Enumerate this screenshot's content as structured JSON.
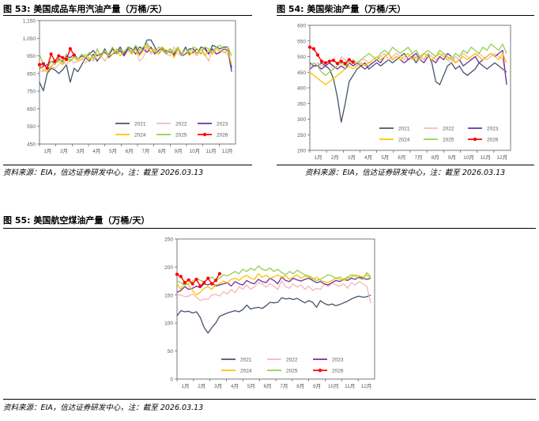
{
  "figures": [
    {
      "title": "图 53:  美国成品车用汽油产量（万桶/天）",
      "source": "资料来源：EIA，信达证券研发中心，注：截至 2026.03.13"
    },
    {
      "title": "图 54:  美国柴油产量（万桶/天）",
      "source": "资料来源：EIA，信达证券研发中心，注：截至 2026.03.13"
    },
    {
      "title": "图 55:  美国航空煤油产量（万桶/天）",
      "source": "资料来源：EIA，信达证券研发中心，注：截至 2026.03.13"
    }
  ],
  "chart_data": [
    {
      "type": "line",
      "title": "美国成品车用汽油产量（万桶/天）",
      "xlabel": "",
      "ylabel": "",
      "x_ticks": [
        "1月",
        "2月",
        "3月",
        "4月",
        "5月",
        "6月",
        "7月",
        "8月",
        "9月",
        "10月",
        "11月",
        "12月"
      ],
      "y_ticks": [
        450,
        550,
        650,
        750,
        850,
        950,
        1050,
        1150
      ],
      "ylim": [
        450,
        1150
      ],
      "grid": false,
      "legend": "bottom-right",
      "series": [
        {
          "name": "2021",
          "color": "#44546a",
          "values": [
            800,
            752,
            850,
            880,
            870,
            850,
            870,
            900,
            800,
            880,
            860,
            900,
            940,
            920,
            960,
            920,
            950,
            990,
            940,
            960,
            970,
            1000,
            960,
            1000,
            990,
            960,
            1000,
            990,
            1040,
            1040,
            1000,
            960,
            990,
            980,
            970,
            960,
            990,
            950,
            960,
            990,
            990,
            960,
            1000,
            990,
            960,
            1010,
            1000,
            990,
            1000,
            1000,
            880
          ]
        },
        {
          "name": "2022",
          "color": "#f4b8b8",
          "values": [
            870,
            860,
            880,
            890,
            880,
            900,
            920,
            900,
            930,
            910,
            920,
            930,
            910,
            940,
            920,
            960,
            950,
            920,
            960,
            990,
            960,
            980,
            950,
            980,
            960,
            990,
            920,
            940,
            1000,
            960,
            980,
            970,
            980,
            960,
            950,
            1000,
            960,
            950,
            990,
            960,
            970,
            950,
            990,
            960,
            920,
            990,
            960,
            980,
            970,
            960,
            900
          ]
        },
        {
          "name": "2023",
          "color": "#7030a0",
          "values": [
            880,
            890,
            900,
            920,
            910,
            930,
            920,
            950,
            940,
            960,
            930,
            950,
            940,
            960,
            980,
            950,
            960,
            970,
            950,
            990,
            960,
            980,
            950,
            990,
            970,
            1000,
            960,
            990,
            970,
            1000,
            960,
            980,
            1000,
            960,
            990,
            950,
            990,
            960,
            1000,
            960,
            970,
            990,
            960,
            1000,
            960,
            990,
            960,
            970,
            990,
            980,
            860
          ]
        },
        {
          "name": "2024",
          "color": "#ffc000",
          "values": [
            900,
            870,
            860,
            890,
            910,
            920,
            900,
            930,
            920,
            940,
            920,
            930,
            960,
            930,
            950,
            960,
            940,
            980,
            950,
            960,
            990,
            950,
            970,
            1000,
            960,
            990,
            950,
            980,
            1010,
            970,
            990,
            960,
            1000,
            970,
            990,
            940,
            990,
            960,
            990,
            950,
            980,
            960,
            990,
            950,
            980,
            960,
            990,
            980,
            970,
            980,
            900
          ]
        },
        {
          "name": "2025",
          "color": "#92d050",
          "values": [
            960,
            900,
            880,
            920,
            900,
            940,
            910,
            960,
            920,
            950,
            930,
            960,
            940,
            970,
            930,
            990,
            950,
            980,
            960,
            1000,
            960,
            990,
            970,
            1000,
            970,
            1010,
            980,
            1000,
            1020,
            990,
            970,
            1000,
            980,
            960,
            990,
            970,
            1000,
            960,
            990,
            970,
            1000,
            990,
            960,
            1000,
            990,
            970,
            1000,
            1010,
            990,
            1000,
            950
          ]
        },
        {
          "name": "2026",
          "color": "#ff0000",
          "marker": true,
          "values": [
            900,
            905,
            880,
            960,
            920,
            950,
            940,
            930,
            990,
            955
          ]
        }
      ]
    },
    {
      "type": "line",
      "title": "美国柴油产量（万桶/天）",
      "xlabel": "",
      "ylabel": "",
      "x_ticks": [
        "1月",
        "2月",
        "3月",
        "4月",
        "5月",
        "6月",
        "7月",
        "8月",
        "9月",
        "10月",
        "11月",
        "12月"
      ],
      "y_ticks": [
        200,
        250,
        300,
        350,
        400,
        450,
        500,
        550,
        600
      ],
      "ylim": [
        200,
        600
      ],
      "grid": false,
      "legend": "bottom-right",
      "series": [
        {
          "name": "2021",
          "color": "#44546a",
          "values": [
            480,
            470,
            470,
            480,
            470,
            460,
            430,
            370,
            290,
            350,
            420,
            440,
            460,
            470,
            480,
            460,
            470,
            480,
            470,
            480,
            490,
            480,
            490,
            500,
            510,
            490,
            500,
            480,
            500,
            490,
            510,
            480,
            420,
            410,
            440,
            470,
            480,
            460,
            470,
            450,
            440,
            450,
            460,
            480,
            470,
            460,
            470,
            480,
            470,
            460,
            450
          ]
        },
        {
          "name": "2022",
          "color": "#f4b8b8",
          "values": [
            460,
            470,
            480,
            470,
            470,
            480,
            460,
            470,
            500,
            490,
            480,
            480,
            470,
            490,
            490,
            480,
            480,
            490,
            500,
            510,
            490,
            500,
            510,
            500,
            490,
            500,
            510,
            490,
            500,
            490,
            510,
            500,
            490,
            500,
            510,
            490,
            480,
            500,
            490,
            510,
            500,
            490,
            500,
            510,
            500,
            490,
            500,
            510,
            500,
            490,
            420
          ]
        },
        {
          "name": "2023",
          "color": "#7030a0",
          "values": [
            460,
            470,
            470,
            460,
            470,
            480,
            470,
            460,
            470,
            460,
            480,
            470,
            480,
            470,
            460,
            470,
            480,
            490,
            480,
            500,
            510,
            490,
            500,
            490,
            480,
            490,
            500,
            510,
            490,
            480,
            500,
            490,
            480,
            500,
            490,
            510,
            500,
            480,
            490,
            470,
            480,
            490,
            500,
            480,
            490,
            500,
            510,
            500,
            510,
            520,
            410
          ]
        },
        {
          "name": "2024",
          "color": "#ffc000",
          "values": [
            450,
            440,
            430,
            420,
            410,
            420,
            430,
            440,
            450,
            460,
            470,
            460,
            470,
            480,
            470,
            480,
            490,
            500,
            490,
            500,
            510,
            490,
            500,
            490,
            500,
            510,
            490,
            500,
            490,
            510,
            500,
            490,
            500,
            510,
            500,
            490,
            500,
            480,
            490,
            500,
            490,
            500,
            510,
            500,
            490,
            500,
            510,
            500,
            490,
            510,
            480
          ]
        },
        {
          "name": "2025",
          "color": "#92d050",
          "values": [
            470,
            480,
            470,
            450,
            440,
            450,
            460,
            470,
            480,
            470,
            480,
            490,
            480,
            490,
            500,
            510,
            500,
            490,
            510,
            520,
            510,
            530,
            520,
            510,
            520,
            530,
            510,
            520,
            500,
            510,
            520,
            510,
            500,
            520,
            510,
            500,
            490,
            510,
            500,
            520,
            510,
            530,
            520,
            510,
            530,
            520,
            540,
            530,
            520,
            540,
            510
          ]
        },
        {
          "name": "2026",
          "color": "#ff0000",
          "marker": true,
          "values": [
            530,
            525,
            505,
            485,
            480,
            485,
            488,
            478,
            485,
            478,
            490,
            482
          ]
        }
      ]
    },
    {
      "type": "line",
      "title": "美国航空煤油产量（万桶/天）",
      "xlabel": "",
      "ylabel": "",
      "x_ticks": [
        "1月",
        "2月",
        "3月",
        "4月",
        "5月",
        "6月",
        "7月",
        "8月",
        "9月",
        "10月",
        "11月",
        "12月"
      ],
      "y_ticks": [
        0,
        50,
        100,
        150,
        200,
        250
      ],
      "ylim": [
        0,
        250
      ],
      "grid": false,
      "legend": "bottom",
      "series": [
        {
          "name": "2021",
          "color": "#44546a",
          "values": [
            113,
            122,
            120,
            121,
            118,
            120,
            110,
            92,
            82,
            92,
            100,
            112,
            115,
            118,
            120,
            122,
            120,
            124,
            132,
            125,
            127,
            128,
            126,
            131,
            137,
            136,
            137,
            145,
            143,
            144,
            142,
            144,
            140,
            136,
            140,
            137,
            128,
            140,
            135,
            132,
            134,
            131,
            133,
            136,
            139,
            143,
            146,
            148,
            146,
            147,
            150
          ]
        },
        {
          "name": "2022",
          "color": "#f4b8b8",
          "values": [
            150,
            150,
            147,
            148,
            152,
            146,
            140,
            143,
            142,
            150,
            151,
            148,
            156,
            152,
            160,
            154,
            165,
            160,
            168,
            160,
            165,
            172,
            170,
            164,
            170,
            166,
            160,
            175,
            165,
            162,
            170,
            164,
            168,
            160,
            166,
            158,
            162,
            160,
            170,
            165,
            172,
            168,
            166,
            170,
            162,
            172,
            168,
            174,
            170,
            165,
            135
          ]
        },
        {
          "name": "2023",
          "color": "#7030a0",
          "values": [
            155,
            158,
            165,
            160,
            162,
            166,
            163,
            170,
            168,
            172,
            166,
            168,
            170,
            172,
            166,
            174,
            170,
            168,
            176,
            172,
            170,
            178,
            174,
            172,
            180,
            176,
            170,
            182,
            176,
            174,
            180,
            177,
            175,
            178,
            180,
            176,
            172,
            174,
            170,
            168,
            172,
            176,
            174,
            178,
            176,
            180,
            178,
            182,
            180,
            178,
            180
          ]
        },
        {
          "name": "2024",
          "color": "#ffc000",
          "values": [
            170,
            160,
            175,
            168,
            158,
            150,
            155,
            162,
            165,
            160,
            168,
            170,
            175,
            172,
            178,
            180,
            176,
            182,
            185,
            180,
            178,
            188,
            182,
            185,
            180,
            182,
            186,
            182,
            184,
            178,
            182,
            186,
            180,
            184,
            182,
            178,
            182,
            176,
            174,
            172,
            176,
            180,
            178,
            176,
            180,
            182,
            186,
            184,
            182,
            186,
            180
          ]
        },
        {
          "name": "2025",
          "color": "#92d050",
          "values": [
            175,
            172,
            168,
            170,
            175,
            180,
            176,
            174,
            178,
            182,
            176,
            180,
            186,
            184,
            188,
            192,
            188,
            196,
            192,
            198,
            194,
            202,
            196,
            194,
            198,
            192,
            196,
            190,
            186,
            192,
            188,
            194,
            190,
            186,
            184,
            180,
            176,
            178,
            182,
            186,
            184,
            180,
            182,
            178,
            182,
            186,
            184,
            180,
            178,
            190,
            182
          ]
        },
        {
          "name": "2026",
          "color": "#ff0000",
          "marker": true,
          "values": [
            187,
            183,
            172,
            177,
            170,
            178,
            166,
            172,
            180,
            170,
            176,
            188
          ]
        }
      ]
    }
  ]
}
